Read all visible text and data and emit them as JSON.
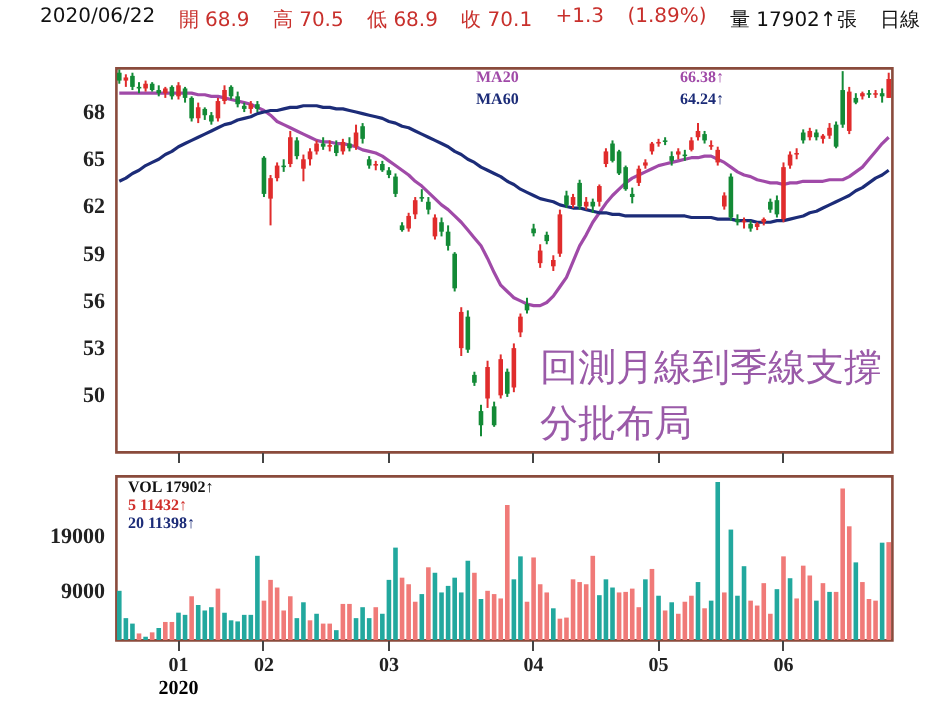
{
  "chart_data": [
    {
      "type": "candlestick",
      "tick_labels": "y",
      "grid": false,
      "categories": [
        null,
        null,
        null,
        null,
        null,
        null,
        null,
        null,
        null,
        "01",
        null,
        null,
        null,
        null,
        null,
        null,
        null,
        null,
        null,
        null,
        null,
        null,
        "02",
        null,
        null,
        null,
        null,
        null,
        null,
        null,
        null,
        null,
        null,
        null,
        null,
        null,
        null,
        null,
        null,
        null,
        null,
        "03",
        null,
        null,
        null,
        null,
        null,
        null,
        null,
        null,
        null,
        null,
        null,
        null,
        null,
        null,
        null,
        null,
        null,
        null,
        null,
        null,
        null,
        "04",
        null,
        null,
        null,
        null,
        null,
        null,
        null,
        null,
        null,
        null,
        null,
        null,
        null,
        null,
        null,
        null,
        null,
        null,
        "05",
        null,
        null,
        null,
        null,
        null,
        null,
        null,
        null,
        null,
        null,
        null,
        null,
        null,
        null,
        null,
        null,
        null,
        null,
        "06",
        null,
        null,
        null,
        null,
        null,
        null,
        null,
        null,
        null,
        null,
        null,
        null,
        null,
        null,
        null,
        null
      ],
      "ylim": [
        46.4,
        70.8
      ],
      "yticks": [
        50,
        53,
        56,
        59,
        62,
        65,
        68
      ],
      "ohlc": [
        [
          70.5,
          70.7,
          69.8,
          70.0
        ],
        [
          70.0,
          70.4,
          69.6,
          70.2
        ],
        [
          70.3,
          70.5,
          69.4,
          69.6
        ],
        [
          69.6,
          69.9,
          69.2,
          69.5
        ],
        [
          69.5,
          70.0,
          69.3,
          69.8
        ],
        [
          69.8,
          69.9,
          69.3,
          69.4
        ],
        [
          69.4,
          69.7,
          69.0,
          69.2
        ],
        [
          69.2,
          69.6,
          68.9,
          69.5
        ],
        [
          69.6,
          69.7,
          68.8,
          69.0
        ],
        [
          69.0,
          69.9,
          68.8,
          69.7
        ],
        [
          69.5,
          69.6,
          68.6,
          68.9
        ],
        [
          68.9,
          69.0,
          67.4,
          67.6
        ],
        [
          67.6,
          68.6,
          67.3,
          68.3
        ],
        [
          68.2,
          68.3,
          67.5,
          67.8
        ],
        [
          67.8,
          68.0,
          67.2,
          67.4
        ],
        [
          67.6,
          68.9,
          67.4,
          68.7
        ],
        [
          68.7,
          69.7,
          68.5,
          69.4
        ],
        [
          69.6,
          69.7,
          68.8,
          69.0
        ],
        [
          69.0,
          69.3,
          68.3,
          68.5
        ],
        [
          68.4,
          68.6,
          68.0,
          68.2
        ],
        [
          68.2,
          68.7,
          67.9,
          68.5
        ],
        [
          68.5,
          68.7,
          68.0,
          68.2
        ],
        [
          65.1,
          65.2,
          62.6,
          62.8
        ],
        [
          62.5,
          64.0,
          60.8,
          63.8
        ],
        [
          63.8,
          64.8,
          63.6,
          64.6
        ],
        [
          64.6,
          65.0,
          64.2,
          64.5
        ],
        [
          64.7,
          66.8,
          64.5,
          66.4
        ],
        [
          66.2,
          66.4,
          65.0,
          65.2
        ],
        [
          64.4,
          65.3,
          63.6,
          65.0
        ],
        [
          65.0,
          65.7,
          64.6,
          65.5
        ],
        [
          65.5,
          66.2,
          65.3,
          66.0
        ],
        [
          66.0,
          66.4,
          65.6,
          65.8
        ],
        [
          65.8,
          66.2,
          65.5,
          65.9
        ],
        [
          65.9,
          66.2,
          65.2,
          65.4
        ],
        [
          65.5,
          66.3,
          65.3,
          66.1
        ],
        [
          66.0,
          66.4,
          65.5,
          65.7
        ],
        [
          65.8,
          67.2,
          65.6,
          66.7
        ],
        [
          67.1,
          67.3,
          66.0,
          66.3
        ],
        [
          65.0,
          65.2,
          64.4,
          64.6
        ],
        [
          64.6,
          64.9,
          64.3,
          64.7
        ],
        [
          64.7,
          64.9,
          64.2,
          64.3
        ],
        [
          64.3,
          64.5,
          63.8,
          64.0
        ],
        [
          63.9,
          64.1,
          62.6,
          62.8
        ],
        [
          60.8,
          61.0,
          60.4,
          60.5
        ],
        [
          60.6,
          61.6,
          60.4,
          61.4
        ],
        [
          61.5,
          62.6,
          61.2,
          62.4
        ],
        [
          62.6,
          63.1,
          62.3,
          62.5
        ],
        [
          62.3,
          62.6,
          61.5,
          61.8
        ],
        [
          60.1,
          61.5,
          59.9,
          61.3
        ],
        [
          61.0,
          61.3,
          60.1,
          60.4
        ],
        [
          60.4,
          60.8,
          59.2,
          59.5
        ],
        [
          59.0,
          59.1,
          56.6,
          56.8
        ],
        [
          53.0,
          55.6,
          52.5,
          55.3
        ],
        [
          55.0,
          55.4,
          52.7,
          52.9
        ],
        [
          51.3,
          51.5,
          50.6,
          50.8
        ],
        [
          49.0,
          49.4,
          47.4,
          48.1
        ],
        [
          49.8,
          52.2,
          49.2,
          51.8
        ],
        [
          49.3,
          49.6,
          48.0,
          48.1
        ],
        [
          50.0,
          52.6,
          49.8,
          52.3
        ],
        [
          51.5,
          51.7,
          49.9,
          50.1
        ],
        [
          50.5,
          53.3,
          50.2,
          53.0
        ],
        [
          54.0,
          55.2,
          53.7,
          55.0
        ],
        [
          55.8,
          56.2,
          55.2,
          55.4
        ],
        [
          60.6,
          60.9,
          60.1,
          60.3
        ],
        [
          58.4,
          59.6,
          58.1,
          59.2
        ],
        [
          60.2,
          60.4,
          59.6,
          59.8
        ],
        [
          58.2,
          58.9,
          57.9,
          58.6
        ],
        [
          59.0,
          61.8,
          58.8,
          61.5
        ],
        [
          62.7,
          63.0,
          61.9,
          62.1
        ],
        [
          62.1,
          62.8,
          61.9,
          62.6
        ],
        [
          63.5,
          63.7,
          61.8,
          62.0
        ],
        [
          62.0,
          62.6,
          61.8,
          62.3
        ],
        [
          62.3,
          62.5,
          61.6,
          62.0
        ],
        [
          62.3,
          63.4,
          62.0,
          63.3
        ],
        [
          64.7,
          65.7,
          64.5,
          65.5
        ],
        [
          66.0,
          66.2,
          64.8,
          64.9
        ],
        [
          65.5,
          65.6,
          64.0,
          64.1
        ],
        [
          64.5,
          64.6,
          63.0,
          63.1
        ],
        [
          62.8,
          63.2,
          62.2,
          62.6
        ],
        [
          63.5,
          64.6,
          63.3,
          64.4
        ],
        [
          64.6,
          65.0,
          64.4,
          64.8
        ],
        [
          65.5,
          66.1,
          65.3,
          66.0
        ],
        [
          66.0,
          66.3,
          65.8,
          66.1
        ],
        [
          66.2,
          66.4,
          65.9,
          66.1
        ],
        [
          65.2,
          65.5,
          64.6,
          64.9
        ],
        [
          65.3,
          65.7,
          65.0,
          65.5
        ],
        [
          65.3,
          65.6,
          64.9,
          65.2
        ],
        [
          65.6,
          66.4,
          65.5,
          66.2
        ],
        [
          66.4,
          67.3,
          66.2,
          66.8
        ],
        [
          66.6,
          66.8,
          66.0,
          66.2
        ],
        [
          65.8,
          66.2,
          65.6,
          65.9
        ],
        [
          64.8,
          65.8,
          64.6,
          65.6
        ],
        [
          62.0,
          62.9,
          61.8,
          62.7
        ],
        [
          63.9,
          64.1,
          61.1,
          61.3
        ],
        [
          61.2,
          61.5,
          60.8,
          61.0
        ],
        [
          61.0,
          61.3,
          60.6,
          61.1
        ],
        [
          60.9,
          61.1,
          60.4,
          60.6
        ],
        [
          60.7,
          61.0,
          60.5,
          60.9
        ],
        [
          61.0,
          61.3,
          60.8,
          61.2
        ],
        [
          62.3,
          62.5,
          61.6,
          61.8
        ],
        [
          62.4,
          62.7,
          61.3,
          61.5
        ],
        [
          61.2,
          64.8,
          61.0,
          64.5
        ],
        [
          64.6,
          65.5,
          64.4,
          65.3
        ],
        [
          65.3,
          65.7,
          65.0,
          65.4
        ],
        [
          66.7,
          66.9,
          66.0,
          66.2
        ],
        [
          66.4,
          67.0,
          66.2,
          66.8
        ],
        [
          66.7,
          66.9,
          66.2,
          66.4
        ],
        [
          66.3,
          66.6,
          66.0,
          66.5
        ],
        [
          66.5,
          67.3,
          66.3,
          67.0
        ],
        [
          67.2,
          67.4,
          65.7,
          65.8
        ],
        [
          69.4,
          70.6,
          67.0,
          67.2
        ],
        [
          66.8,
          69.6,
          66.6,
          69.3
        ],
        [
          68.9,
          69.2,
          68.5,
          68.6
        ],
        [
          69.0,
          69.3,
          68.8,
          69.2
        ],
        [
          69.2,
          69.4,
          68.9,
          69.1
        ],
        [
          69.1,
          69.4,
          68.9,
          69.2
        ],
        [
          69.2,
          69.5,
          68.6,
          69.0
        ],
        [
          68.9,
          70.5,
          68.9,
          70.1
        ]
      ],
      "colors": [
        "#138a36",
        "#e02c2c",
        "#138a36",
        "#138a36",
        "#e02c2c",
        "#138a36",
        "#138a36",
        "#e02c2c",
        "#138a36",
        "#e02c2c",
        "#138a36",
        "#138a36",
        "#e02c2c",
        "#138a36",
        "#138a36",
        "#e02c2c",
        "#e02c2c",
        "#138a36",
        "#138a36",
        "#138a36",
        "#e02c2c",
        "#138a36",
        "#138a36",
        "#e02c2c",
        "#e02c2c",
        "#138a36",
        "#e02c2c",
        "#138a36",
        "#e02c2c",
        "#e02c2c",
        "#e02c2c",
        "#138a36",
        "#e02c2c",
        "#138a36",
        "#e02c2c",
        "#138a36",
        "#e02c2c",
        "#138a36",
        "#138a36",
        "#e02c2c",
        "#138a36",
        "#138a36",
        "#138a36",
        "#138a36",
        "#e02c2c",
        "#e02c2c",
        "#138a36",
        "#138a36",
        "#e02c2c",
        "#138a36",
        "#138a36",
        "#138a36",
        "#e02c2c",
        "#138a36",
        "#138a36",
        "#138a36",
        "#e02c2c",
        "#138a36",
        "#e02c2c",
        "#138a36",
        "#e02c2c",
        "#e02c2c",
        "#138a36",
        "#138a36",
        "#e02c2c",
        "#138a36",
        "#e02c2c",
        "#e02c2c",
        "#138a36",
        "#e02c2c",
        "#138a36",
        "#e02c2c",
        "#138a36",
        "#e02c2c",
        "#e02c2c",
        "#138a36",
        "#138a36",
        "#138a36",
        "#138a36",
        "#e02c2c",
        "#e02c2c",
        "#e02c2c",
        "#e02c2c",
        "#138a36",
        "#138a36",
        "#e02c2c",
        "#138a36",
        "#e02c2c",
        "#e02c2c",
        "#138a36",
        "#e02c2c",
        "#e02c2c",
        "#e02c2c",
        "#138a36",
        "#138a36",
        "#e02c2c",
        "#138a36",
        "#e02c2c",
        "#e02c2c",
        "#138a36",
        "#138a36",
        "#e02c2c",
        "#e02c2c",
        "#e02c2c",
        "#138a36",
        "#e02c2c",
        "#138a36",
        "#e02c2c",
        "#e02c2c",
        "#138a36",
        "#138a36",
        "#e02c2c",
        "#138a36",
        "#e02c2c",
        "#138a36",
        "#e02c2c",
        "#138a36",
        "#e02c2c"
      ],
      "series": [
        {
          "name": "MA20",
          "type": "line",
          "color": "#a04aa8",
          "values": [
            69.2,
            69.2,
            69.2,
            69.2,
            69.2,
            69.2,
            69.2,
            69.2,
            69.2,
            69.2,
            69.2,
            69.2,
            69.1,
            69.1,
            69.0,
            69.0,
            68.9,
            68.8,
            68.7,
            68.6,
            68.5,
            68.3,
            68.1,
            67.8,
            67.4,
            67.2,
            67.0,
            66.8,
            66.6,
            66.4,
            66.2,
            66.1,
            66.1,
            66.0,
            66.0,
            65.9,
            65.8,
            65.6,
            65.5,
            65.4,
            65.2,
            64.9,
            64.6,
            64.3,
            64.0,
            63.6,
            63.3,
            62.9,
            62.5,
            62.1,
            61.8,
            61.4,
            61.0,
            60.5,
            60.0,
            59.5,
            58.7,
            57.8,
            57.0,
            56.6,
            56.2,
            56.0,
            55.8,
            55.7,
            55.7,
            55.9,
            56.3,
            56.9,
            57.5,
            58.5,
            59.5,
            60.2,
            61.0,
            61.6,
            62.2,
            62.7,
            63.1,
            63.5,
            63.8,
            64.0,
            64.2,
            64.4,
            64.6,
            64.7,
            64.8,
            64.9,
            65.0,
            65.1,
            65.1,
            65.2,
            65.2,
            65.0,
            64.8,
            64.5,
            64.2,
            64.0,
            63.9,
            63.7,
            63.6,
            63.5,
            63.5,
            63.4,
            63.5,
            63.5,
            63.6,
            63.6,
            63.6,
            63.6,
            63.7,
            63.7,
            63.7,
            63.9,
            64.2,
            64.5,
            65.0,
            65.5,
            66.0,
            66.4
          ]
        },
        {
          "name": "MA60",
          "type": "line",
          "color": "#1c2c78",
          "values": [
            63.6,
            63.8,
            64.1,
            64.3,
            64.6,
            64.8,
            65.0,
            65.3,
            65.5,
            65.8,
            66.0,
            66.2,
            66.4,
            66.6,
            66.8,
            67.0,
            67.2,
            67.3,
            67.5,
            67.6,
            67.7,
            67.9,
            68.0,
            68.1,
            68.1,
            68.2,
            68.3,
            68.3,
            68.4,
            68.4,
            68.4,
            68.3,
            68.3,
            68.2,
            68.2,
            68.1,
            68.0,
            67.9,
            67.8,
            67.7,
            67.6,
            67.4,
            67.3,
            67.1,
            67.0,
            66.8,
            66.6,
            66.4,
            66.2,
            66.0,
            65.8,
            65.5,
            65.3,
            65.0,
            64.8,
            64.5,
            64.3,
            64.1,
            63.9,
            63.6,
            63.4,
            63.1,
            62.9,
            62.7,
            62.5,
            62.4,
            62.3,
            62.1,
            62.0,
            61.9,
            61.9,
            61.8,
            61.7,
            61.6,
            61.6,
            61.5,
            61.5,
            61.4,
            61.4,
            61.4,
            61.4,
            61.4,
            61.4,
            61.4,
            61.4,
            61.4,
            61.4,
            61.3,
            61.3,
            61.3,
            61.3,
            61.2,
            61.2,
            61.2,
            61.1,
            61.1,
            61.1,
            61.0,
            61.0,
            61.0,
            61.1,
            61.1,
            61.2,
            61.3,
            61.4,
            61.6,
            61.7,
            61.9,
            62.1,
            62.3,
            62.5,
            62.7,
            63.0,
            63.2,
            63.5,
            63.8,
            64.0,
            64.3
          ]
        }
      ],
      "annotations": [
        "2020/06/22",
        "開 68.9",
        "高 70.5",
        "低 68.9",
        "收 70.1",
        "+1.3",
        "(1.89%)",
        "量 17902↑張",
        "日線",
        "66.38↑",
        "64.24↑",
        "回測月線到季線支撐",
        "分批布局"
      ]
    },
    {
      "type": "bar",
      "grid": false,
      "categories": [
        null,
        null,
        null,
        null,
        null,
        null,
        null,
        null,
        null,
        "01",
        null,
        null,
        null,
        null,
        null,
        null,
        null,
        null,
        null,
        null,
        null,
        null,
        "02",
        null,
        null,
        null,
        null,
        null,
        null,
        null,
        null,
        null,
        null,
        null,
        null,
        null,
        null,
        null,
        null,
        null,
        null,
        "03",
        null,
        null,
        null,
        null,
        null,
        null,
        null,
        null,
        null,
        null,
        null,
        null,
        null,
        null,
        null,
        null,
        null,
        null,
        null,
        null,
        null,
        "04",
        null,
        null,
        null,
        null,
        null,
        null,
        null,
        null,
        null,
        null,
        null,
        null,
        null,
        null,
        null,
        null,
        null,
        null,
        "05",
        null,
        null,
        null,
        null,
        null,
        null,
        null,
        null,
        null,
        null,
        null,
        null,
        null,
        null,
        null,
        null,
        null,
        null,
        "06",
        null,
        null,
        null,
        null,
        null,
        null,
        null,
        null,
        null,
        null,
        null,
        null,
        null,
        null,
        null,
        null
      ],
      "ylim": [
        0,
        30000
      ],
      "yticks": [
        9000,
        19000
      ],
      "values": [
        9000,
        4000,
        3000,
        1200,
        600,
        1400,
        2200,
        3300,
        3300,
        5000,
        4600,
        8000,
        6400,
        5400,
        6000,
        9400,
        5000,
        3600,
        3400,
        4600,
        4600,
        15400,
        7200,
        11000,
        9600,
        5400,
        8000,
        4000,
        6900,
        3600,
        4800,
        3000,
        3000,
        1800,
        6600,
        6600,
        4000,
        6000,
        4000,
        6000,
        4800,
        11000,
        16900,
        11400,
        10200,
        7000,
        8400,
        13300,
        12300,
        8700,
        9900,
        11400,
        8700,
        14500,
        12300,
        7500,
        9000,
        8400,
        7600,
        24700,
        11100,
        15300,
        7000,
        15100,
        10200,
        8700,
        5800,
        3900,
        4100,
        11100,
        10600,
        10200,
        15400,
        8200,
        11100,
        9600,
        8700,
        8800,
        9400,
        6000,
        11100,
        13000,
        8100,
        5400,
        6900,
        4800,
        7000,
        8100,
        10600,
        5800,
        7200,
        28900,
        8700,
        20200,
        8100,
        13500,
        7200,
        6300,
        10400,
        4800,
        9300,
        15300,
        11300,
        7600,
        13600,
        11800,
        7200,
        10400,
        8800,
        8800,
        27700,
        20800,
        14200,
        10600,
        7500,
        7200,
        17800,
        17900
      ],
      "colors": [
        "#22a89e",
        "#22a89e",
        "#22a89e",
        "#f07a78",
        "#22a89e",
        "#f07a78",
        "#22a89e",
        "#f07a78",
        "#f07a78",
        "#22a89e",
        "#22a89e",
        "#f07a78",
        "#22a89e",
        "#22a89e",
        "#22a89e",
        "#f07a78",
        "#22a89e",
        "#22a89e",
        "#22a89e",
        "#22a89e",
        "#22a89e",
        "#22a89e",
        "#f07a78",
        "#f07a78",
        "#f07a78",
        "#f07a78",
        "#f07a78",
        "#22a89e",
        "#22a89e",
        "#f07a78",
        "#22a89e",
        "#f07a78",
        "#f07a78",
        "#22a89e",
        "#f07a78",
        "#f07a78",
        "#22a89e",
        "#22a89e",
        "#22a89e",
        "#f07a78",
        "#22a89e",
        "#22a89e",
        "#22a89e",
        "#f07a78",
        "#f07a78",
        "#f07a78",
        "#22a89e",
        "#f07a78",
        "#22a89e",
        "#22a89e",
        "#22a89e",
        "#22a89e",
        "#22a89e",
        "#22a89e",
        "#f07a78",
        "#22a89e",
        "#f07a78",
        "#f07a78",
        "#f07a78",
        "#f07a78",
        "#22a89e",
        "#22a89e",
        "#f07a78",
        "#f07a78",
        "#f07a78",
        "#f07a78",
        "#22a89e",
        "#f07a78",
        "#f07a78",
        "#f07a78",
        "#f07a78",
        "#f07a78",
        "#f07a78",
        "#22a89e",
        "#22a89e",
        "#22a89e",
        "#f07a78",
        "#f07a78",
        "#f07a78",
        "#f07a78",
        "#22a89e",
        "#f07a78",
        "#22a89e",
        "#f07a78",
        "#22a89e",
        "#f07a78",
        "#f07a78",
        "#f07a78",
        "#22a89e",
        "#f07a78",
        "#22a89e",
        "#22a89e",
        "#f07a78",
        "#22a89e",
        "#22a89e",
        "#22a89e",
        "#f07a78",
        "#f07a78",
        "#f07a78",
        "#f07a78",
        "#22a89e",
        "#f07a78",
        "#22a89e",
        "#f07a78",
        "#f07a78",
        "#f07a78",
        "#22a89e",
        "#f07a78",
        "#22a89e",
        "#f07a78",
        "#f07a78",
        "#f07a78",
        "#22a89e",
        "#f07a78",
        "#f07a78",
        "#f07a78",
        "#22a89e",
        "#f07a78"
      ],
      "annotations": [
        "VOL 17902↑",
        "5 11432↑",
        "20 11398↑",
        "2020"
      ]
    }
  ]
}
